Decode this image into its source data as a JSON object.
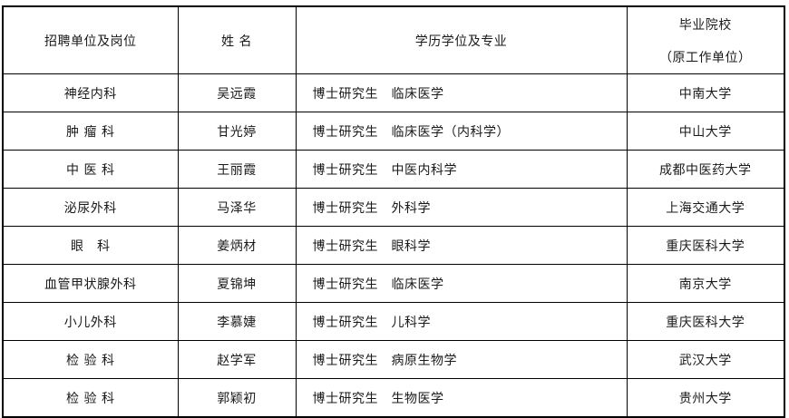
{
  "colors": {
    "background": "#ffffff",
    "border": "#000000",
    "text": "#1a1a1a"
  },
  "table": {
    "headers": {
      "department": "招聘单位及岗位",
      "name": "姓  名",
      "education": "学历学位及专业",
      "school_line1": "毕业院校",
      "school_line2": "（原工作单位）"
    },
    "rows": [
      {
        "department": "神经内科",
        "name": "吴远霞",
        "education": "博士研究生　临床医学",
        "school": "中南大学"
      },
      {
        "department": "肿 瘤 科",
        "name": "甘光婷",
        "education": "博士研究生　临床医学（内科学）",
        "school": "中山大学"
      },
      {
        "department": "中 医 科",
        "name": "王丽霞",
        "education": "博士研究生　中医内科学",
        "school": "成都中医药大学"
      },
      {
        "department": "泌尿外科",
        "name": "马泽华",
        "education": "博士研究生　外科学",
        "school": "上海交通大学"
      },
      {
        "department": "眼　科",
        "name": "姜炳材",
        "education": "博士研究生　眼科学",
        "school": "重庆医科大学"
      },
      {
        "department": "血管甲状腺外科",
        "name": "夏锦坤",
        "education": "博士研究生　临床医学",
        "school": "南京大学"
      },
      {
        "department": "小儿外科",
        "name": "李慕婕",
        "education": "博士研究生　儿科学",
        "school": "重庆医科大学"
      },
      {
        "department": "检 验 科",
        "name": "赵学军",
        "education": "博士研究生　病原生物学",
        "school": "武汉大学"
      },
      {
        "department": "检 验 科",
        "name": "郭颖初",
        "education": "博士研究生　生物医学",
        "school": "贵州大学"
      }
    ]
  }
}
